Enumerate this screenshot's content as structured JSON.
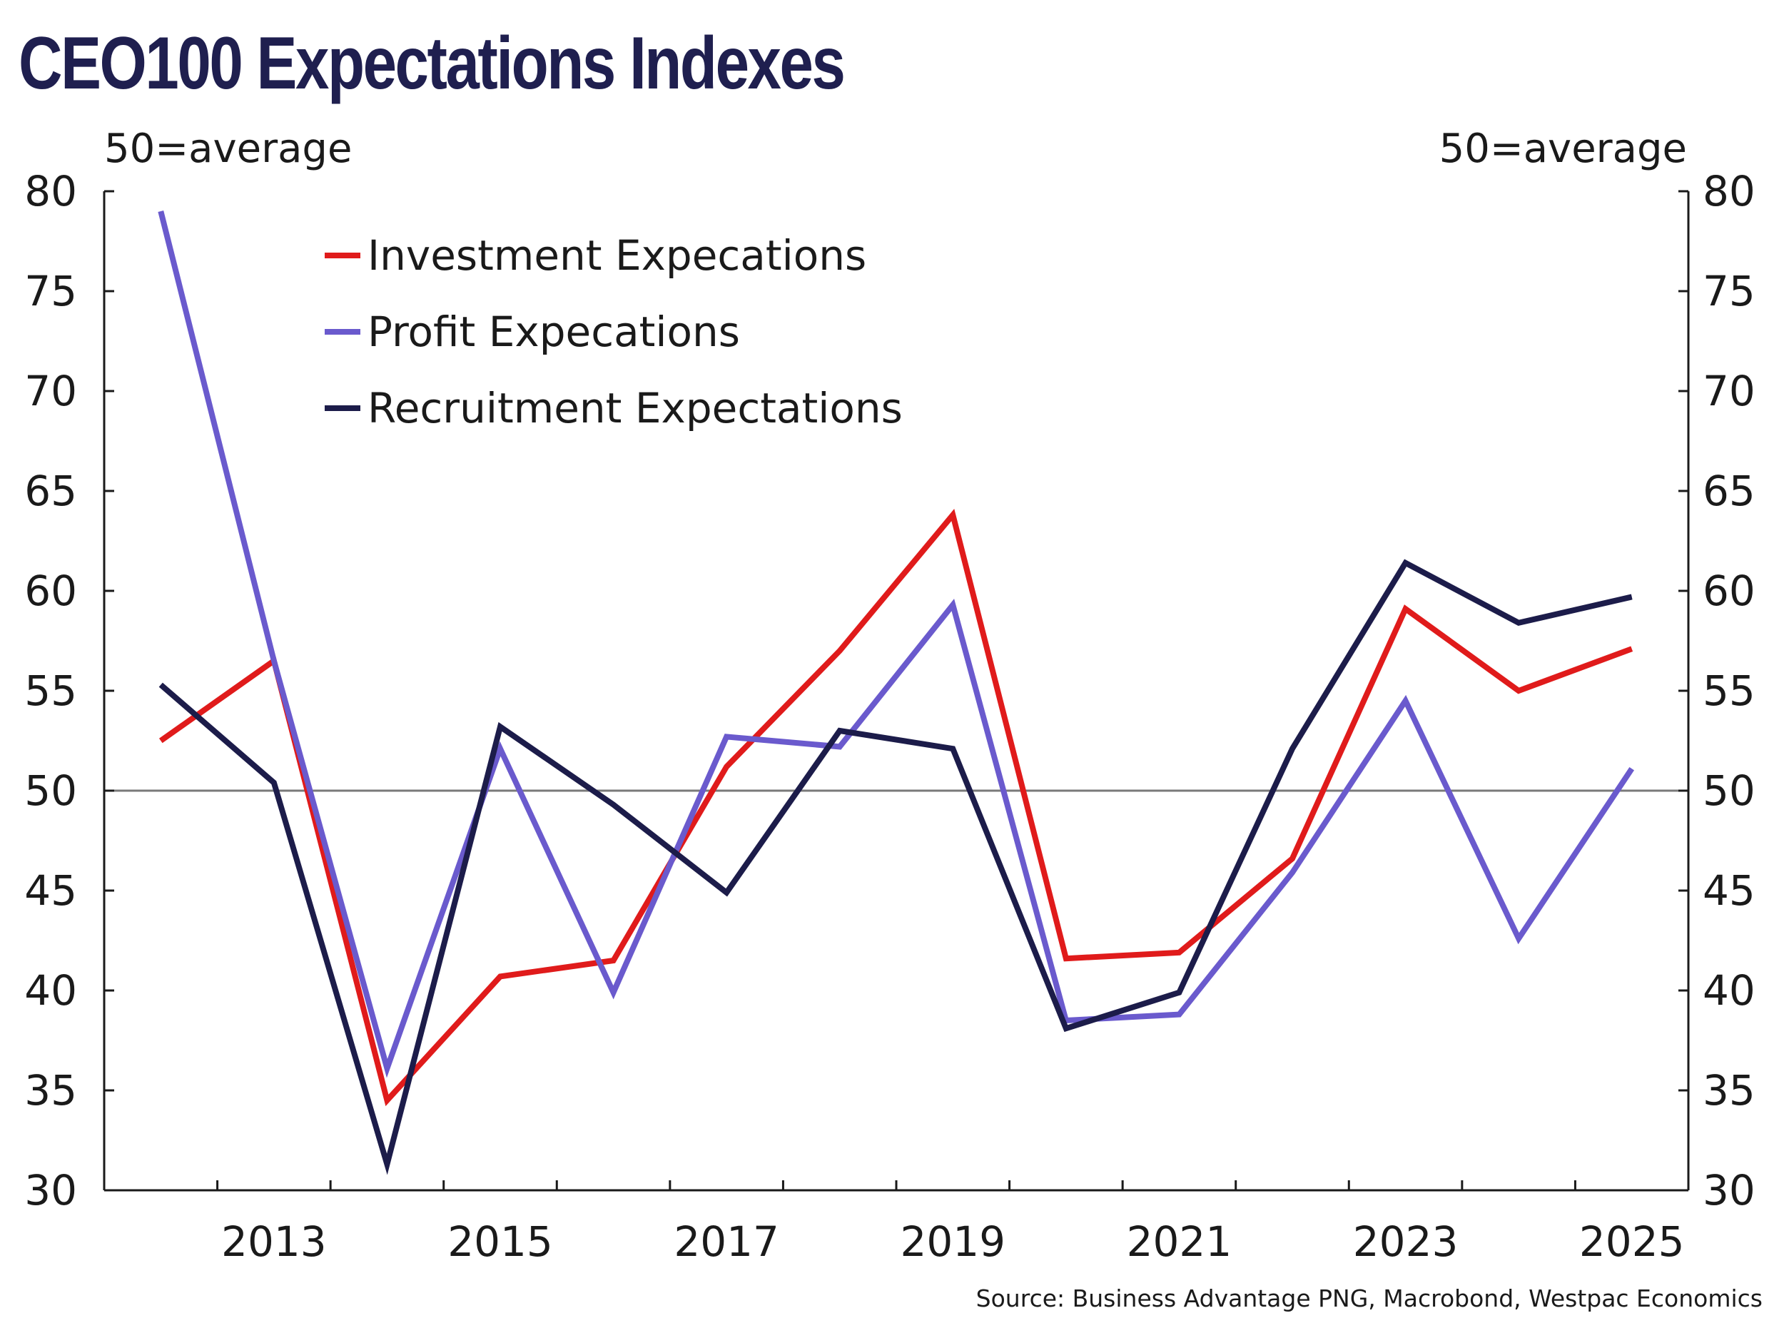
{
  "chart_data": {
    "type": "line",
    "title": "CEO100 Expectations Indexes",
    "ylabel_left": "50=average",
    "ylabel_right": "50=average",
    "source": "Source: Business Advantage PNG, Macrobond, Westpac Economics",
    "ylim": [
      30,
      80
    ],
    "yticks": [
      "30",
      "35",
      "40",
      "45",
      "50",
      "55",
      "60",
      "65",
      "70",
      "75",
      "80"
    ],
    "xlim": [
      2012,
      2026
    ],
    "xtick_labels": [
      "2013",
      "2015",
      "2017",
      "2019",
      "2021",
      "2023",
      "2025"
    ],
    "reference_line": 50,
    "grid": false,
    "legend_position": "top-left",
    "x": [
      2012.5,
      2013.5,
      2014.5,
      2015.5,
      2016.5,
      2017.5,
      2018.5,
      2019.5,
      2020.5,
      2021.5,
      2022.5,
      2023.5,
      2024.5,
      2025.5
    ],
    "series": [
      {
        "name": "Investment Expecations",
        "color": "#e01b1b",
        "values": [
          52.5,
          56.5,
          34.5,
          40.7,
          41.5,
          51.2,
          57.0,
          63.8,
          41.6,
          41.9,
          46.6,
          59.1,
          55.0,
          57.1
        ]
      },
      {
        "name": "Profit Expecations",
        "color": "#6a5acd",
        "values": [
          79.0,
          56.5,
          36.1,
          52.1,
          39.9,
          52.7,
          52.2,
          59.3,
          38.5,
          38.8,
          45.9,
          54.5,
          42.6,
          51.1
        ]
      },
      {
        "name": "Recruitment Expectations",
        "color": "#1c1c4a",
        "values": [
          55.3,
          50.4,
          31.3,
          53.2,
          49.3,
          44.9,
          53.0,
          52.1,
          38.1,
          39.9,
          52.1,
          61.4,
          58.4,
          59.7
        ]
      }
    ]
  }
}
